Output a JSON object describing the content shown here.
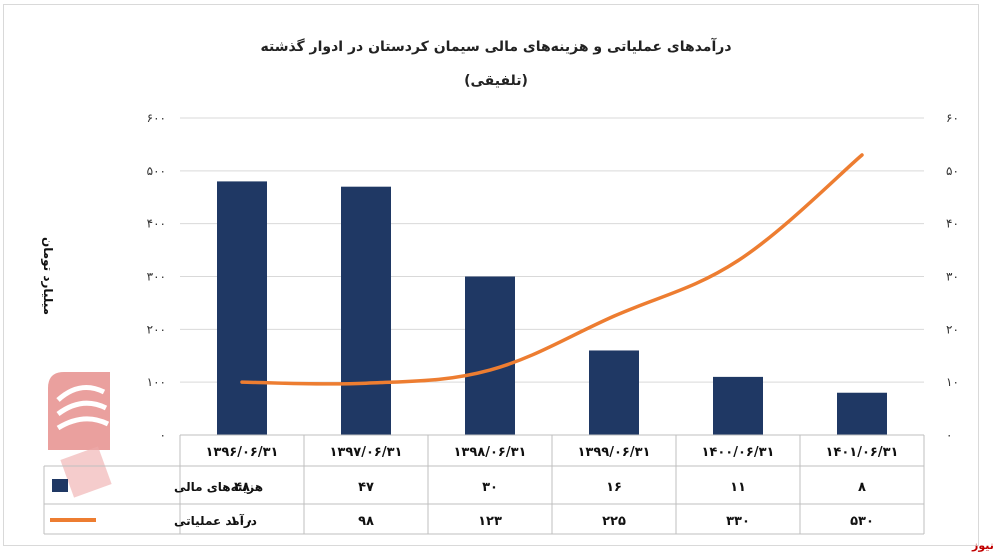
{
  "chart_data": {
    "type": "bar",
    "title": "درآمدهای عملیاتی و هزینه‌های مالی سیمان کردستان در ادوار گذشته",
    "subtitle": "(تلفیقی)",
    "ylabel": "میلیارد تومان",
    "categories": [
      "۱۳۹۶/۰۶/۳۱",
      "۱۳۹۷/۰۶/۳۱",
      "۱۳۹۸/۰۶/۳۱",
      "۱۳۹۹/۰۶/۳۱",
      "۱۴۰۰/۰۶/۳۱",
      "۱۴۰۱/۰۶/۳۱"
    ],
    "left_axis": {
      "ylim": [
        0,
        600
      ],
      "ticks": [
        "۰",
        "۱۰۰",
        "۲۰۰",
        "۳۰۰",
        "۴۰۰",
        "۵۰۰",
        "۶۰۰"
      ]
    },
    "right_axis": {
      "ylim": [
        0,
        60
      ],
      "ticks": [
        "۰",
        "۱۰",
        "۲۰",
        "۳۰",
        "۴۰",
        "۵۰",
        "۶۰"
      ]
    },
    "series": [
      {
        "name": "هزینه‌های مالی",
        "type": "bar",
        "axis": "right",
        "values": [
          48,
          47,
          30,
          16,
          11,
          8
        ],
        "labels": [
          "۴۸",
          "۴۷",
          "۳۰",
          "۱۶",
          "۱۱",
          "۸"
        ],
        "color": "#1f3864"
      },
      {
        "name": "درآمد عملیاتی",
        "type": "line",
        "axis": "left",
        "values": [
          100,
          98,
          123,
          225,
          330,
          530
        ],
        "labels": [
          "۱۰۰",
          "۹۸",
          "۱۲۳",
          "۲۲۵",
          "۳۳۰",
          "۵۳۰"
        ],
        "color": "#ed7d31"
      }
    ],
    "grid": true,
    "legend": "table-bottom"
  },
  "source": "بورس نیوز"
}
